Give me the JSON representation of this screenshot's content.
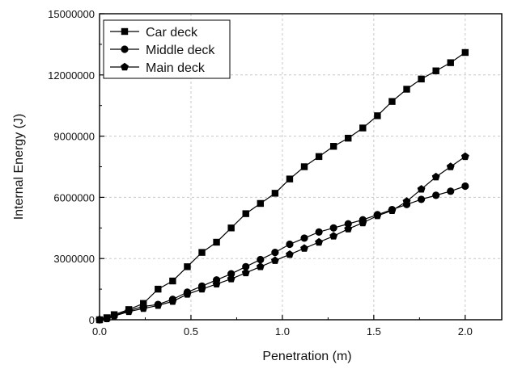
{
  "chart_data": {
    "type": "line",
    "title": "",
    "xlabel": "Penetration (m)",
    "ylabel": "Internal Energy (J)",
    "xlim": [
      0,
      2.2
    ],
    "ylim": [
      0,
      15000000
    ],
    "xticks": [
      0.0,
      0.5,
      1.0,
      1.5,
      2.0
    ],
    "xtick_labels": [
      "0.0",
      "0.5",
      "1.0",
      "1.5",
      "2.0"
    ],
    "yticks": [
      0,
      3000000,
      6000000,
      9000000,
      12000000,
      15000000
    ],
    "ytick_labels": [
      "0",
      "3000000",
      "6000000",
      "9000000",
      "12000000",
      "15000000"
    ],
    "grid": true,
    "legend_position": "top-left",
    "series": [
      {
        "name": "Car deck",
        "marker": "square",
        "x": [
          0.0,
          0.04,
          0.08,
          0.16,
          0.24,
          0.32,
          0.4,
          0.48,
          0.56,
          0.64,
          0.72,
          0.8,
          0.88,
          0.96,
          1.04,
          1.12,
          1.2,
          1.28,
          1.36,
          1.44,
          1.52,
          1.6,
          1.68,
          1.76,
          1.84,
          1.92,
          2.0
        ],
        "y": [
          0,
          100000,
          250000,
          500000,
          800000,
          1500000,
          1900000,
          2600000,
          3300000,
          3800000,
          4500000,
          5200000,
          5700000,
          6200000,
          6900000,
          7500000,
          8000000,
          8500000,
          8900000,
          9400000,
          10000000,
          10700000,
          11300000,
          11800000,
          12200000,
          12600000,
          13100000
        ]
      },
      {
        "name": "Middle deck",
        "marker": "circle",
        "x": [
          0.0,
          0.04,
          0.08,
          0.16,
          0.24,
          0.32,
          0.4,
          0.48,
          0.56,
          0.64,
          0.72,
          0.8,
          0.88,
          0.96,
          1.04,
          1.12,
          1.2,
          1.28,
          1.36,
          1.44,
          1.52,
          1.6,
          1.68,
          1.76,
          1.84,
          1.92,
          2.0
        ],
        "y": [
          0,
          60000,
          200000,
          450000,
          650000,
          750000,
          1000000,
          1350000,
          1650000,
          1950000,
          2250000,
          2600000,
          2950000,
          3300000,
          3700000,
          4000000,
          4300000,
          4500000,
          4700000,
          4900000,
          5150000,
          5400000,
          5650000,
          5900000,
          6100000,
          6300000,
          6550000
        ]
      },
      {
        "name": "Main deck",
        "marker": "pentagon",
        "x": [
          0.0,
          0.04,
          0.08,
          0.16,
          0.24,
          0.32,
          0.4,
          0.48,
          0.56,
          0.64,
          0.72,
          0.8,
          0.88,
          0.96,
          1.04,
          1.12,
          1.2,
          1.28,
          1.36,
          1.44,
          1.52,
          1.6,
          1.68,
          1.76,
          1.84,
          1.92,
          2.0
        ],
        "y": [
          0,
          50000,
          180000,
          400000,
          550000,
          700000,
          900000,
          1250000,
          1500000,
          1750000,
          2000000,
          2300000,
          2600000,
          2900000,
          3200000,
          3500000,
          3800000,
          4100000,
          4450000,
          4750000,
          5100000,
          5350000,
          5800000,
          6400000,
          7000000,
          7500000,
          8000000
        ]
      }
    ]
  }
}
